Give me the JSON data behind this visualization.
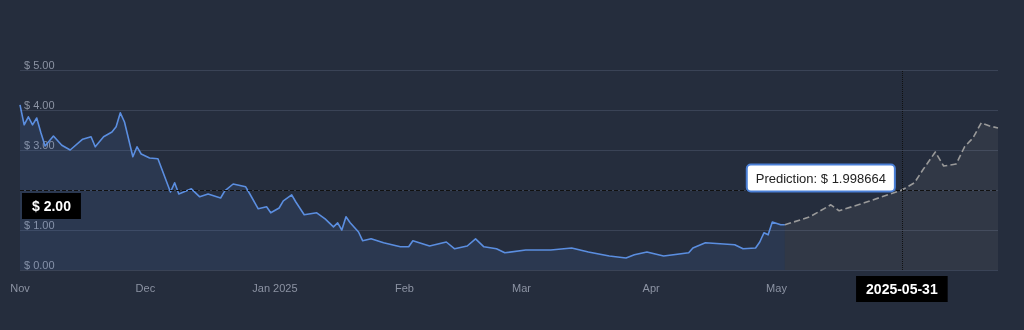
{
  "chart_data": {
    "type": "area",
    "marker": "none",
    "grid": "y",
    "xlim": [
      "2024-11-01",
      "2025-06-23"
    ],
    "xticks": [
      {
        "value": "2024-11-01",
        "label": "Nov"
      },
      {
        "value": "2024-12-01",
        "label": "Dec"
      },
      {
        "value": "2025-01-01",
        "label": "Jan 2025"
      },
      {
        "value": "2025-02-01",
        "label": "Feb"
      },
      {
        "value": "2025-03-01",
        "label": "Mar"
      },
      {
        "value": "2025-04-01",
        "label": "Apr"
      },
      {
        "value": "2025-05-01",
        "label": "May"
      }
    ],
    "ylim": [
      0,
      5
    ],
    "yticks": [
      {
        "value": 0,
        "label": "$ 0.00"
      },
      {
        "value": 1,
        "label": "$ 1.00"
      },
      {
        "value": 2,
        "label": null
      },
      {
        "value": 3,
        "label": "$ 3.00"
      },
      {
        "value": 4,
        "label": "$ 4.00"
      },
      {
        "value": 5,
        "label": "$ 5.00"
      }
    ],
    "series": [
      {
        "color": "#5b8ee0",
        "line_style": "solid",
        "x": [
          "2024-11-01",
          "2024-11-02",
          "2024-11-03",
          "2024-11-04",
          "2024-11-05",
          "2024-11-06",
          "2024-11-07",
          "2024-11-09",
          "2024-11-11",
          "2024-11-13",
          "2024-11-16",
          "2024-11-18",
          "2024-11-19",
          "2024-11-21",
          "2024-11-23",
          "2024-11-24",
          "2024-11-25",
          "2024-11-26",
          "2024-11-28",
          "2024-11-29",
          "2024-11-30",
          "2024-12-02",
          "2024-12-04",
          "2024-12-07",
          "2024-12-08",
          "2024-12-09",
          "2024-12-12",
          "2024-12-14",
          "2024-12-16",
          "2024-12-19",
          "2024-12-20",
          "2024-12-22",
          "2024-12-25",
          "2024-12-26",
          "2024-12-28",
          "2024-12-30",
          "2024-12-31",
          "2025-01-02",
          "2025-01-03",
          "2025-01-05",
          "2025-01-06",
          "2025-01-08",
          "2025-01-11",
          "2025-01-13",
          "2025-01-15",
          "2025-01-16",
          "2025-01-17",
          "2025-01-18",
          "2025-01-19",
          "2025-01-21",
          "2025-01-22",
          "2025-01-24",
          "2025-01-27",
          "2025-01-31",
          "2025-02-02",
          "2025-02-03",
          "2025-02-07",
          "2025-02-11",
          "2025-02-13",
          "2025-02-16",
          "2025-02-18",
          "2025-02-20",
          "2025-02-23",
          "2025-02-25",
          "2025-03-02",
          "2025-03-08",
          "2025-03-13",
          "2025-03-17",
          "2025-03-22",
          "2025-03-26",
          "2025-03-28",
          "2025-03-31",
          "2025-04-04",
          "2025-04-10",
          "2025-04-11",
          "2025-04-14",
          "2025-04-21",
          "2025-04-23",
          "2025-04-26",
          "2025-04-27",
          "2025-04-28",
          "2025-04-29",
          "2025-04-30",
          "2025-05-02",
          "2025-05-03"
        ],
        "values": [
          4.13,
          3.63,
          3.83,
          3.63,
          3.8,
          3.43,
          3.1,
          3.35,
          3.12,
          3.0,
          3.27,
          3.33,
          3.08,
          3.33,
          3.45,
          3.58,
          3.93,
          3.7,
          2.83,
          3.08,
          2.9,
          2.8,
          2.78,
          1.95,
          2.18,
          1.9,
          2.03,
          1.83,
          1.9,
          1.8,
          1.98,
          2.15,
          2.08,
          1.9,
          1.53,
          1.58,
          1.43,
          1.55,
          1.73,
          1.88,
          1.7,
          1.38,
          1.43,
          1.28,
          1.08,
          1.18,
          1.0,
          1.33,
          1.18,
          0.95,
          0.73,
          0.78,
          0.68,
          0.58,
          0.58,
          0.73,
          0.6,
          0.7,
          0.53,
          0.6,
          0.78,
          0.58,
          0.53,
          0.43,
          0.5,
          0.5,
          0.55,
          0.45,
          0.35,
          0.3,
          0.38,
          0.45,
          0.35,
          0.43,
          0.55,
          0.68,
          0.63,
          0.53,
          0.55,
          0.7,
          0.93,
          0.88,
          1.2,
          1.13,
          1.13
        ]
      },
      {
        "color": "#9a9a9a",
        "line_style": "dashed",
        "x": [
          "2025-05-03",
          "2025-05-09",
          "2025-05-14",
          "2025-05-16",
          "2025-05-22",
          "2025-05-31",
          "2025-06-03",
          "2025-06-05",
          "2025-06-08",
          "2025-06-10",
          "2025-06-13",
          "2025-06-15",
          "2025-06-17",
          "2025-06-19",
          "2025-06-21",
          "2025-06-23"
        ],
        "values": [
          1.13,
          1.33,
          1.63,
          1.48,
          1.68,
          1.998664,
          2.18,
          2.5,
          2.95,
          2.6,
          2.65,
          3.08,
          3.3,
          3.68,
          3.6,
          3.55
        ]
      }
    ],
    "ref_lines": [
      {
        "axis": "y",
        "value": 2,
        "label": "$ 2.00",
        "line_style": "dashed"
      },
      {
        "axis": "x",
        "value": "2025-05-31",
        "label": "2025-05-31",
        "line_style": "dotted"
      }
    ],
    "annotations": [
      {
        "text": "Prediction: $ 1.998664",
        "x": "2025-05-31",
        "y": 1.998664
      }
    ]
  }
}
